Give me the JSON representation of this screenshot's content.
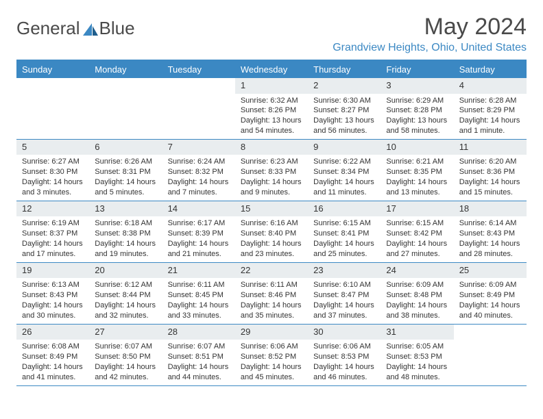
{
  "brand": {
    "name1": "General",
    "name2": "Blue"
  },
  "title": {
    "month": "May 2024",
    "location": "Grandview Heights, Ohio, United States"
  },
  "dow": [
    "Sunday",
    "Monday",
    "Tuesday",
    "Wednesday",
    "Thursday",
    "Friday",
    "Saturday"
  ],
  "colors": {
    "accent": "#3b88c3",
    "daynum_bg": "#e9edef",
    "text": "#333333",
    "brand": "#4a4a4a"
  },
  "weeks": [
    [
      {
        "n": "",
        "sr": "",
        "ss": "",
        "dl": ""
      },
      {
        "n": "",
        "sr": "",
        "ss": "",
        "dl": ""
      },
      {
        "n": "",
        "sr": "",
        "ss": "",
        "dl": ""
      },
      {
        "n": "1",
        "sr": "Sunrise: 6:32 AM",
        "ss": "Sunset: 8:26 PM",
        "dl": "Daylight: 13 hours and 54 minutes."
      },
      {
        "n": "2",
        "sr": "Sunrise: 6:30 AM",
        "ss": "Sunset: 8:27 PM",
        "dl": "Daylight: 13 hours and 56 minutes."
      },
      {
        "n": "3",
        "sr": "Sunrise: 6:29 AM",
        "ss": "Sunset: 8:28 PM",
        "dl": "Daylight: 13 hours and 58 minutes."
      },
      {
        "n": "4",
        "sr": "Sunrise: 6:28 AM",
        "ss": "Sunset: 8:29 PM",
        "dl": "Daylight: 14 hours and 1 minute."
      }
    ],
    [
      {
        "n": "5",
        "sr": "Sunrise: 6:27 AM",
        "ss": "Sunset: 8:30 PM",
        "dl": "Daylight: 14 hours and 3 minutes."
      },
      {
        "n": "6",
        "sr": "Sunrise: 6:26 AM",
        "ss": "Sunset: 8:31 PM",
        "dl": "Daylight: 14 hours and 5 minutes."
      },
      {
        "n": "7",
        "sr": "Sunrise: 6:24 AM",
        "ss": "Sunset: 8:32 PM",
        "dl": "Daylight: 14 hours and 7 minutes."
      },
      {
        "n": "8",
        "sr": "Sunrise: 6:23 AM",
        "ss": "Sunset: 8:33 PM",
        "dl": "Daylight: 14 hours and 9 minutes."
      },
      {
        "n": "9",
        "sr": "Sunrise: 6:22 AM",
        "ss": "Sunset: 8:34 PM",
        "dl": "Daylight: 14 hours and 11 minutes."
      },
      {
        "n": "10",
        "sr": "Sunrise: 6:21 AM",
        "ss": "Sunset: 8:35 PM",
        "dl": "Daylight: 14 hours and 13 minutes."
      },
      {
        "n": "11",
        "sr": "Sunrise: 6:20 AM",
        "ss": "Sunset: 8:36 PM",
        "dl": "Daylight: 14 hours and 15 minutes."
      }
    ],
    [
      {
        "n": "12",
        "sr": "Sunrise: 6:19 AM",
        "ss": "Sunset: 8:37 PM",
        "dl": "Daylight: 14 hours and 17 minutes."
      },
      {
        "n": "13",
        "sr": "Sunrise: 6:18 AM",
        "ss": "Sunset: 8:38 PM",
        "dl": "Daylight: 14 hours and 19 minutes."
      },
      {
        "n": "14",
        "sr": "Sunrise: 6:17 AM",
        "ss": "Sunset: 8:39 PM",
        "dl": "Daylight: 14 hours and 21 minutes."
      },
      {
        "n": "15",
        "sr": "Sunrise: 6:16 AM",
        "ss": "Sunset: 8:40 PM",
        "dl": "Daylight: 14 hours and 23 minutes."
      },
      {
        "n": "16",
        "sr": "Sunrise: 6:15 AM",
        "ss": "Sunset: 8:41 PM",
        "dl": "Daylight: 14 hours and 25 minutes."
      },
      {
        "n": "17",
        "sr": "Sunrise: 6:15 AM",
        "ss": "Sunset: 8:42 PM",
        "dl": "Daylight: 14 hours and 27 minutes."
      },
      {
        "n": "18",
        "sr": "Sunrise: 6:14 AM",
        "ss": "Sunset: 8:43 PM",
        "dl": "Daylight: 14 hours and 28 minutes."
      }
    ],
    [
      {
        "n": "19",
        "sr": "Sunrise: 6:13 AM",
        "ss": "Sunset: 8:43 PM",
        "dl": "Daylight: 14 hours and 30 minutes."
      },
      {
        "n": "20",
        "sr": "Sunrise: 6:12 AM",
        "ss": "Sunset: 8:44 PM",
        "dl": "Daylight: 14 hours and 32 minutes."
      },
      {
        "n": "21",
        "sr": "Sunrise: 6:11 AM",
        "ss": "Sunset: 8:45 PM",
        "dl": "Daylight: 14 hours and 33 minutes."
      },
      {
        "n": "22",
        "sr": "Sunrise: 6:11 AM",
        "ss": "Sunset: 8:46 PM",
        "dl": "Daylight: 14 hours and 35 minutes."
      },
      {
        "n": "23",
        "sr": "Sunrise: 6:10 AM",
        "ss": "Sunset: 8:47 PM",
        "dl": "Daylight: 14 hours and 37 minutes."
      },
      {
        "n": "24",
        "sr": "Sunrise: 6:09 AM",
        "ss": "Sunset: 8:48 PM",
        "dl": "Daylight: 14 hours and 38 minutes."
      },
      {
        "n": "25",
        "sr": "Sunrise: 6:09 AM",
        "ss": "Sunset: 8:49 PM",
        "dl": "Daylight: 14 hours and 40 minutes."
      }
    ],
    [
      {
        "n": "26",
        "sr": "Sunrise: 6:08 AM",
        "ss": "Sunset: 8:49 PM",
        "dl": "Daylight: 14 hours and 41 minutes."
      },
      {
        "n": "27",
        "sr": "Sunrise: 6:07 AM",
        "ss": "Sunset: 8:50 PM",
        "dl": "Daylight: 14 hours and 42 minutes."
      },
      {
        "n": "28",
        "sr": "Sunrise: 6:07 AM",
        "ss": "Sunset: 8:51 PM",
        "dl": "Daylight: 14 hours and 44 minutes."
      },
      {
        "n": "29",
        "sr": "Sunrise: 6:06 AM",
        "ss": "Sunset: 8:52 PM",
        "dl": "Daylight: 14 hours and 45 minutes."
      },
      {
        "n": "30",
        "sr": "Sunrise: 6:06 AM",
        "ss": "Sunset: 8:53 PM",
        "dl": "Daylight: 14 hours and 46 minutes."
      },
      {
        "n": "31",
        "sr": "Sunrise: 6:05 AM",
        "ss": "Sunset: 8:53 PM",
        "dl": "Daylight: 14 hours and 48 minutes."
      },
      {
        "n": "",
        "sr": "",
        "ss": "",
        "dl": ""
      }
    ]
  ]
}
